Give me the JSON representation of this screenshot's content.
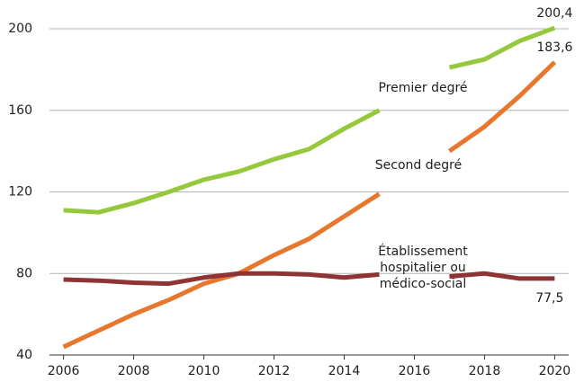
{
  "chart_data": {
    "type": "line",
    "x": [
      2006,
      2007,
      2008,
      2009,
      2010,
      2011,
      2012,
      2013,
      2014,
      2015,
      2016,
      2017,
      2018,
      2019,
      2020
    ],
    "series": [
      {
        "name": "Premier degré",
        "color": "#95c83a",
        "values": [
          111,
          110,
          114.5,
          120,
          126,
          130,
          136,
          141,
          151,
          160,
          null,
          181,
          185,
          194,
          200.4
        ],
        "value_labels": [
          null,
          null,
          null,
          null,
          null,
          null,
          null,
          null,
          null,
          null,
          null,
          null,
          null,
          null,
          "200,4"
        ]
      },
      {
        "name": "Second degré",
        "color": "#e8772e",
        "values": [
          44,
          52,
          60,
          67,
          75,
          80,
          89,
          97,
          108,
          119,
          null,
          140,
          152,
          167,
          183.6
        ],
        "value_labels": [
          null,
          null,
          null,
          null,
          null,
          null,
          null,
          null,
          null,
          null,
          null,
          null,
          null,
          null,
          "183,6"
        ]
      },
      {
        "name": "Établissement hospitalier ou médico-social",
        "color": "#8e3434",
        "values": [
          77,
          76.5,
          75.5,
          75,
          78,
          80,
          80,
          79.5,
          78,
          79.5,
          null,
          78.5,
          80,
          77.5,
          77.5
        ],
        "value_labels": [
          null,
          null,
          null,
          null,
          null,
          null,
          null,
          null,
          null,
          null,
          null,
          null,
          null,
          null,
          "77,5"
        ]
      }
    ],
    "xlim": [
      2005.6,
      2020.4
    ],
    "xticks": [
      2006,
      2008,
      2010,
      2012,
      2014,
      2016,
      2018,
      2020
    ],
    "ylim": [
      40,
      200
    ],
    "yticks": [
      40,
      80,
      120,
      160,
      200
    ],
    "grid": true
  }
}
